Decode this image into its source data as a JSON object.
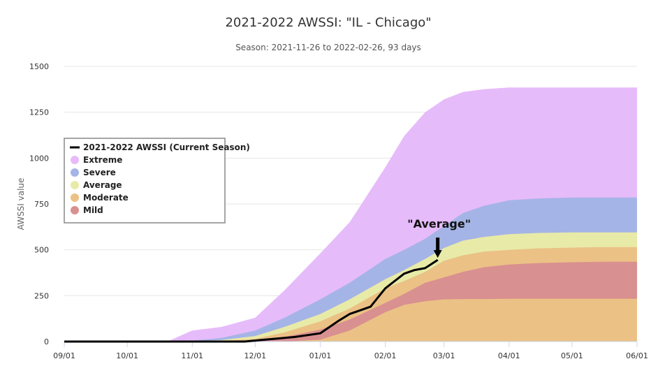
{
  "chart_data": {
    "type": "area",
    "title": "2021-2022 AWSSI: \"IL - Chicago\"",
    "subtitle": "Season: 2021-11-26 to 2022-02-26, 93 days",
    "ylabel": "AWSSI value",
    "xlabel": "",
    "ylim": [
      0,
      1500
    ],
    "x_range": [
      "09/01",
      "06/01"
    ],
    "x_ticks": [
      "09/01",
      "10/01",
      "11/01",
      "12/01",
      "01/01",
      "02/01",
      "03/01",
      "04/01",
      "05/01",
      "06/01"
    ],
    "y_ticks": [
      0,
      250,
      500,
      750,
      1000,
      1250,
      1500
    ],
    "grid": true,
    "legend_position": "left",
    "x": [
      "09/01",
      "10/01",
      "10/21",
      "11/01",
      "11/15",
      "12/01",
      "12/15",
      "01/01",
      "01/15",
      "02/01",
      "02/10",
      "02/20",
      "03/01",
      "03/10",
      "03/20",
      "04/01",
      "04/15",
      "05/01",
      "05/15",
      "06/01"
    ],
    "bands": [
      {
        "name": "Extreme",
        "color": "#e6bbfa",
        "upper": [
          0,
          0,
          5,
          60,
          80,
          130,
          280,
          480,
          650,
          950,
          1120,
          1250,
          1320,
          1360,
          1375,
          1385,
          1385,
          1385,
          1385,
          1385
        ]
      },
      {
        "name": "Severe",
        "color": "#a5b4e6",
        "upper": [
          0,
          0,
          0,
          5,
          20,
          60,
          130,
          230,
          320,
          450,
          500,
          560,
          630,
          700,
          740,
          770,
          780,
          785,
          785,
          785
        ]
      },
      {
        "name": "Average",
        "color": "#e8eaa8",
        "upper": [
          0,
          0,
          0,
          2,
          8,
          30,
          80,
          150,
          230,
          340,
          390,
          450,
          510,
          550,
          570,
          585,
          592,
          595,
          595,
          595
        ]
      },
      {
        "name": "Moderate",
        "color": "#ebc185",
        "upper": [
          0,
          0,
          0,
          1,
          4,
          15,
          50,
          110,
          180,
          290,
          330,
          380,
          440,
          470,
          490,
          500,
          508,
          512,
          515,
          515
        ]
      },
      {
        "name": "Mild",
        "color": "#d99090",
        "upper": [
          0,
          0,
          0,
          0,
          1,
          5,
          25,
          65,
          120,
          210,
          260,
          320,
          350,
          380,
          405,
          420,
          428,
          432,
          435,
          435
        ],
        "lower": [
          0,
          0,
          0,
          0,
          0,
          0,
          0,
          10,
          60,
          160,
          200,
          220,
          230,
          232,
          232,
          233,
          233,
          233,
          233,
          233
        ]
      }
    ],
    "series": [
      {
        "name": "2021-2022 AWSSI (Current Season)",
        "color": "#000000",
        "x": [
          "09/01",
          "11/01",
          "11/26",
          "12/10",
          "12/20",
          "01/01",
          "01/10",
          "01/15",
          "01/25",
          "02/01",
          "02/10",
          "02/15",
          "02/20",
          "02/26"
        ],
        "values": [
          0,
          0,
          0,
          15,
          25,
          45,
          115,
          150,
          190,
          290,
          370,
          390,
          400,
          445
        ]
      }
    ],
    "annotations": [
      {
        "text": "\"Average\"",
        "x": "02/26",
        "y": 620
      }
    ]
  }
}
